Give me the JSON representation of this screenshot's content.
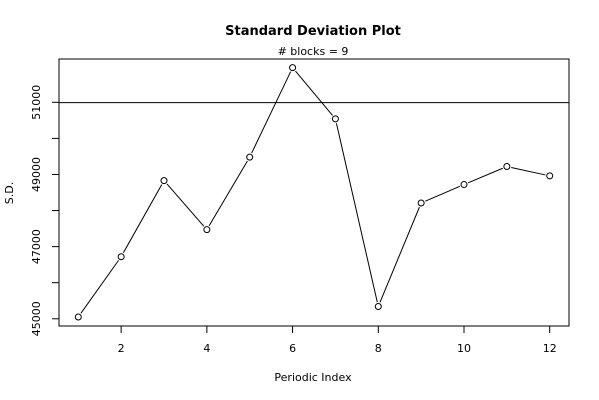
{
  "chart_data": {
    "type": "line",
    "title": "Standard Deviation Plot",
    "subtitle": "# blocks =  9",
    "xlabel": "Periodic Index",
    "ylabel": "S.D.",
    "x": [
      1,
      2,
      3,
      4,
      5,
      6,
      7,
      8,
      9,
      10,
      11,
      12
    ],
    "y": [
      45050,
      46720,
      48830,
      47470,
      49480,
      51960,
      50540,
      45340,
      48210,
      48720,
      49220,
      48960
    ],
    "xlim": [
      0.55,
      12.45
    ],
    "ylim": [
      44800,
      52200
    ],
    "xticks": [
      2,
      4,
      6,
      8,
      10,
      12
    ],
    "xtick_labels": [
      "2",
      "4",
      "6",
      "8",
      "10",
      "12"
    ],
    "yticks": [
      45000,
      47000,
      49000,
      51000
    ],
    "ytick_labels": [
      "45000",
      "47000",
      "49000",
      "51000"
    ],
    "yticks_minor": [
      46000,
      48000,
      50000
    ],
    "hline": 50990,
    "marker": "open-circle",
    "grid": false
  }
}
